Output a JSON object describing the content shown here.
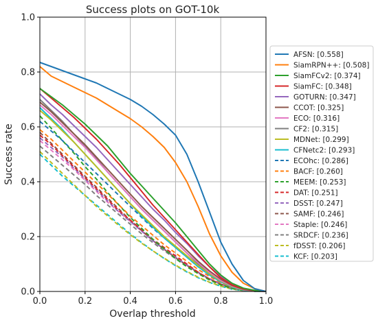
{
  "chart_data": {
    "type": "line",
    "title": "Success plots on GOT-10k",
    "xlabel": "Overlap threshold",
    "ylabel": "Success rate",
    "xlim": [
      0,
      1
    ],
    "ylim": [
      0,
      1
    ],
    "xticks": [
      "0.0",
      "0.2",
      "0.4",
      "0.6",
      "0.8",
      "1.0"
    ],
    "yticks": [
      "0.0",
      "0.2",
      "0.4",
      "0.6",
      "0.8",
      "1.0"
    ],
    "grid": true,
    "legend_position": "right",
    "x": [
      0,
      0.05,
      0.1,
      0.15,
      0.2,
      0.25,
      0.3,
      0.35,
      0.4,
      0.45,
      0.5,
      0.55,
      0.6,
      0.65,
      0.7,
      0.75,
      0.8,
      0.85,
      0.9,
      0.95,
      1.0
    ],
    "series": [
      {
        "name": "AFSN: [0.558]",
        "color": "#1f77b4",
        "dash": "solid",
        "values": [
          0.835,
          0.82,
          0.805,
          0.79,
          0.775,
          0.76,
          0.74,
          0.72,
          0.7,
          0.675,
          0.645,
          0.61,
          0.57,
          0.5,
          0.4,
          0.29,
          0.18,
          0.1,
          0.04,
          0.01,
          0.0
        ]
      },
      {
        "name": "SiamRPN++: [0.508]",
        "color": "#ff7f0e",
        "dash": "solid",
        "values": [
          0.82,
          0.785,
          0.765,
          0.745,
          0.725,
          0.705,
          0.68,
          0.655,
          0.63,
          0.6,
          0.565,
          0.525,
          0.47,
          0.4,
          0.31,
          0.21,
          0.13,
          0.07,
          0.03,
          0.01,
          0.0
        ]
      },
      {
        "name": "SiamFCv2: [0.374]",
        "color": "#2ca02c",
        "dash": "solid",
        "values": [
          0.74,
          0.71,
          0.68,
          0.645,
          0.61,
          0.57,
          0.53,
          0.48,
          0.43,
          0.385,
          0.34,
          0.295,
          0.25,
          0.2,
          0.15,
          0.1,
          0.06,
          0.03,
          0.012,
          0.004,
          0.0
        ]
      },
      {
        "name": "SiamFC: [0.348]",
        "color": "#d62728",
        "dash": "solid",
        "values": [
          0.74,
          0.705,
          0.67,
          0.635,
          0.595,
          0.555,
          0.51,
          0.465,
          0.415,
          0.365,
          0.315,
          0.27,
          0.225,
          0.18,
          0.135,
          0.09,
          0.05,
          0.024,
          0.01,
          0.003,
          0.0
        ]
      },
      {
        "name": "GOTURN: [0.347]",
        "color": "#9467bd",
        "dash": "solid",
        "values": [
          0.72,
          0.68,
          0.645,
          0.605,
          0.565,
          0.525,
          0.48,
          0.435,
          0.39,
          0.345,
          0.3,
          0.26,
          0.215,
          0.175,
          0.13,
          0.09,
          0.055,
          0.027,
          0.01,
          0.003,
          0.0
        ]
      },
      {
        "name": "CCOT: [0.325]",
        "color": "#8c564b",
        "dash": "solid",
        "values": [
          0.69,
          0.655,
          0.615,
          0.575,
          0.535,
          0.49,
          0.445,
          0.4,
          0.355,
          0.31,
          0.27,
          0.23,
          0.19,
          0.15,
          0.11,
          0.075,
          0.045,
          0.022,
          0.008,
          0.002,
          0.0
        ]
      },
      {
        "name": "ECO: [0.316]",
        "color": "#e377c2",
        "dash": "solid",
        "values": [
          0.68,
          0.645,
          0.605,
          0.565,
          0.525,
          0.48,
          0.435,
          0.39,
          0.345,
          0.3,
          0.26,
          0.22,
          0.18,
          0.14,
          0.105,
          0.07,
          0.04,
          0.02,
          0.007,
          0.002,
          0.0
        ]
      },
      {
        "name": "CF2: [0.315]",
        "color": "#7f7f7f",
        "dash": "solid",
        "values": [
          0.7,
          0.66,
          0.62,
          0.575,
          0.53,
          0.485,
          0.435,
          0.39,
          0.345,
          0.3,
          0.26,
          0.22,
          0.18,
          0.14,
          0.1,
          0.07,
          0.04,
          0.02,
          0.007,
          0.002,
          0.0
        ]
      },
      {
        "name": "MDNet: [0.299]",
        "color": "#bcbd22",
        "dash": "solid",
        "values": [
          0.66,
          0.625,
          0.585,
          0.545,
          0.5,
          0.455,
          0.41,
          0.365,
          0.32,
          0.28,
          0.24,
          0.2,
          0.165,
          0.13,
          0.095,
          0.065,
          0.038,
          0.018,
          0.006,
          0.002,
          0.0
        ]
      },
      {
        "name": "CFNetc2: [0.293]",
        "color": "#17becf",
        "dash": "solid",
        "values": [
          0.67,
          0.63,
          0.59,
          0.545,
          0.5,
          0.455,
          0.41,
          0.365,
          0.32,
          0.275,
          0.235,
          0.195,
          0.16,
          0.125,
          0.09,
          0.06,
          0.035,
          0.016,
          0.005,
          0.001,
          0.0
        ]
      },
      {
        "name": "ECOhc: [0.286]",
        "color": "#1f77b4",
        "dash": "dashed",
        "values": [
          0.62,
          0.585,
          0.55,
          0.51,
          0.47,
          0.43,
          0.39,
          0.35,
          0.31,
          0.27,
          0.23,
          0.195,
          0.16,
          0.125,
          0.09,
          0.06,
          0.035,
          0.016,
          0.005,
          0.001,
          0.0
        ]
      },
      {
        "name": "BACF: [0.260]",
        "color": "#ff7f0e",
        "dash": "dashed",
        "values": [
          0.59,
          0.555,
          0.515,
          0.475,
          0.435,
          0.395,
          0.355,
          0.315,
          0.275,
          0.24,
          0.205,
          0.17,
          0.14,
          0.11,
          0.08,
          0.055,
          0.032,
          0.015,
          0.005,
          0.001,
          0.0
        ]
      },
      {
        "name": "MEEM: [0.253]",
        "color": "#2ca02c",
        "dash": "dashed",
        "values": [
          0.64,
          0.595,
          0.55,
          0.505,
          0.455,
          0.41,
          0.36,
          0.315,
          0.27,
          0.23,
          0.19,
          0.155,
          0.12,
          0.09,
          0.065,
          0.042,
          0.024,
          0.011,
          0.004,
          0.001,
          0.0
        ]
      },
      {
        "name": "DAT: [0.251]",
        "color": "#d62728",
        "dash": "dashed",
        "values": [
          0.57,
          0.535,
          0.495,
          0.455,
          0.415,
          0.375,
          0.335,
          0.295,
          0.26,
          0.225,
          0.19,
          0.16,
          0.13,
          0.1,
          0.07,
          0.045,
          0.026,
          0.012,
          0.004,
          0.001,
          0.0
        ]
      },
      {
        "name": "DSST: [0.247]",
        "color": "#9467bd",
        "dash": "dashed",
        "values": [
          0.56,
          0.525,
          0.49,
          0.45,
          0.41,
          0.37,
          0.33,
          0.29,
          0.255,
          0.22,
          0.185,
          0.155,
          0.125,
          0.097,
          0.07,
          0.046,
          0.027,
          0.012,
          0.004,
          0.001,
          0.0
        ]
      },
      {
        "name": "SAMF: [0.246]",
        "color": "#8c564b",
        "dash": "dashed",
        "values": [
          0.58,
          0.54,
          0.5,
          0.46,
          0.42,
          0.38,
          0.34,
          0.3,
          0.26,
          0.222,
          0.186,
          0.153,
          0.123,
          0.095,
          0.068,
          0.045,
          0.026,
          0.012,
          0.004,
          0.001,
          0.0
        ]
      },
      {
        "name": "Staple: [0.246]",
        "color": "#e377c2",
        "dash": "dashed",
        "values": [
          0.55,
          0.515,
          0.48,
          0.445,
          0.405,
          0.365,
          0.325,
          0.29,
          0.255,
          0.22,
          0.185,
          0.153,
          0.123,
          0.095,
          0.07,
          0.047,
          0.028,
          0.013,
          0.004,
          0.001,
          0.0
        ]
      },
      {
        "name": "SRDCF: [0.236]",
        "color": "#7f7f7f",
        "dash": "dashed",
        "values": [
          0.53,
          0.495,
          0.46,
          0.425,
          0.39,
          0.35,
          0.315,
          0.28,
          0.245,
          0.21,
          0.178,
          0.148,
          0.12,
          0.093,
          0.068,
          0.045,
          0.026,
          0.012,
          0.004,
          0.001,
          0.0
        ]
      },
      {
        "name": "fDSST: [0.206]",
        "color": "#bcbd22",
        "dash": "dashed",
        "values": [
          0.51,
          0.47,
          0.43,
          0.39,
          0.35,
          0.31,
          0.275,
          0.24,
          0.207,
          0.176,
          0.148,
          0.121,
          0.096,
          0.073,
          0.052,
          0.034,
          0.02,
          0.009,
          0.003,
          0.001,
          0.0
        ]
      },
      {
        "name": "KCF: [0.203]",
        "color": "#17becf",
        "dash": "dashed",
        "values": [
          0.5,
          0.46,
          0.42,
          0.385,
          0.35,
          0.315,
          0.28,
          0.245,
          0.21,
          0.178,
          0.148,
          0.12,
          0.094,
          0.071,
          0.05,
          0.033,
          0.019,
          0.008,
          0.003,
          0.001,
          0.0
        ]
      }
    ]
  }
}
